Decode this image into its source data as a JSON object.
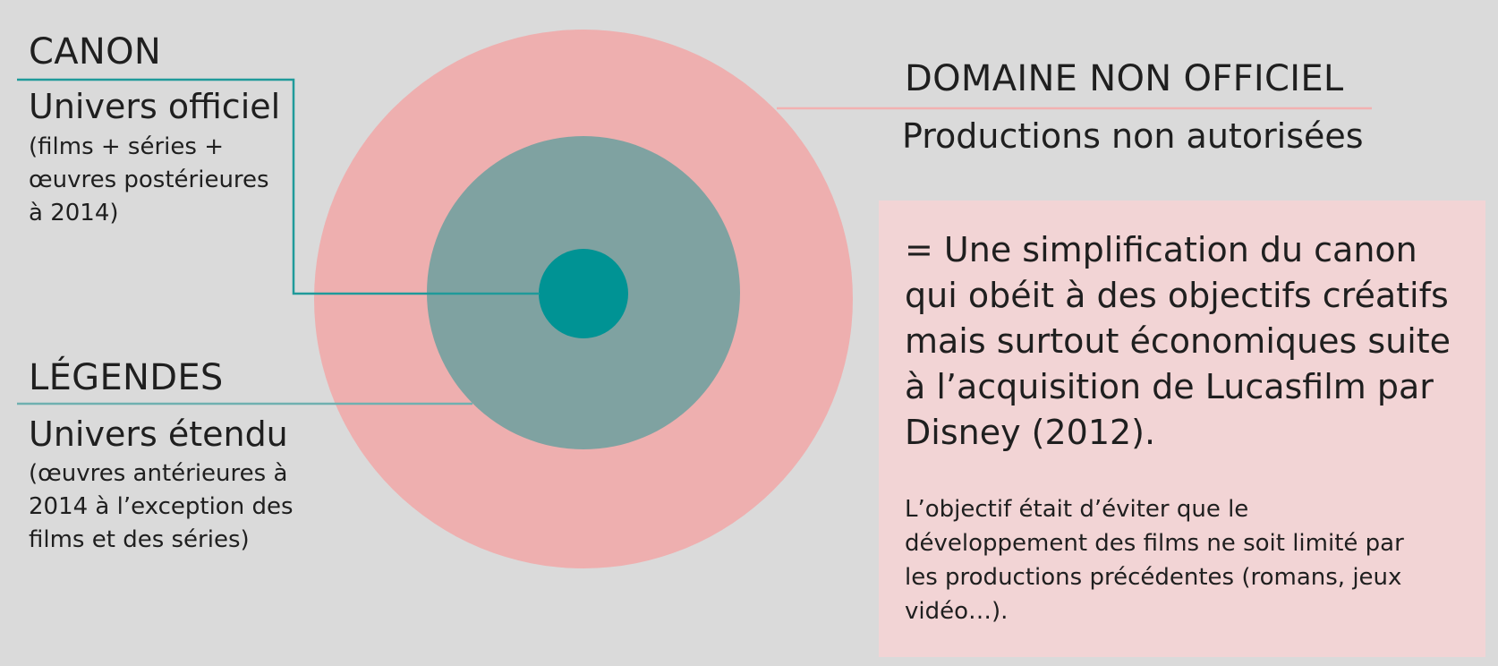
{
  "colors": {
    "background": "#dadada",
    "outer_ring": "#eeafaf",
    "middle_ring": "#7fa2a1",
    "core": "#009394",
    "canon_line": "#1f9a9a",
    "legendes_line": "#6fb0b0",
    "non_officiel_line": "#f2b1b1",
    "note_box": "#f2d4d5"
  },
  "canon": {
    "heading": "CANON",
    "subtitle": "Univers officiel",
    "details": [
      "(films + séries +",
      "œuvres postérieures",
      "à 2014)"
    ]
  },
  "legendes": {
    "heading": "LÉGENDES",
    "subtitle": "Univers étendu",
    "details": [
      "(œuvres antérieures à",
      "2014 à l’exception des",
      "films et des séries)"
    ]
  },
  "non_officiel": {
    "heading": "DOMAINE NON OFFICIEL",
    "subtitle": "Productions non autorisées"
  },
  "note": {
    "main": [
      "= Une simplification du canon",
      "qui obéit à des objectifs créatifs",
      "mais surtout économiques suite",
      "à l’acquisition de Lucasfilm par",
      "Disney (2012)."
    ],
    "secondary": [
      "L’objectif était d’éviter que le",
      "développement des films ne soit limité par",
      "les productions précédentes (romans, jeux",
      "vidéo…)."
    ]
  }
}
